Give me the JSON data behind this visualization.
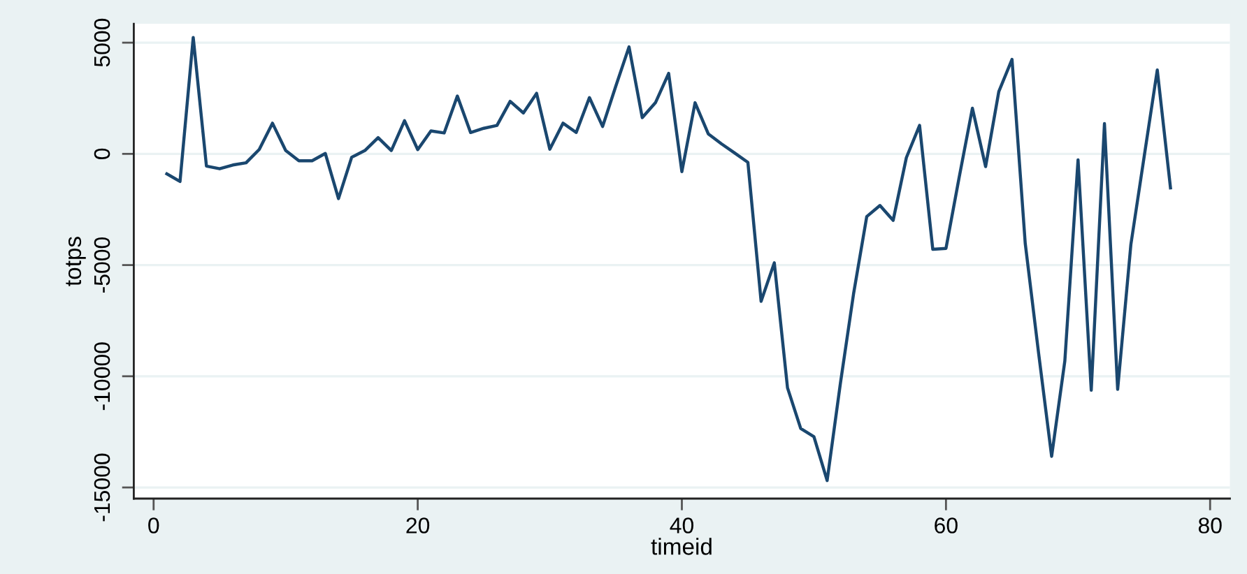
{
  "chart_data": {
    "type": "line",
    "xlabel": "timeid",
    "ylabel": "totps",
    "x": [
      1,
      2,
      3,
      4,
      5,
      6,
      7,
      8,
      9,
      10,
      11,
      12,
      13,
      14,
      15,
      16,
      17,
      18,
      19,
      20,
      21,
      22,
      23,
      24,
      25,
      26,
      27,
      28,
      29,
      30,
      31,
      32,
      33,
      34,
      35,
      36,
      37,
      38,
      39,
      40,
      41,
      42,
      43,
      44,
      45,
      46,
      47,
      48,
      49,
      50,
      51,
      52,
      53,
      54,
      55,
      56,
      57,
      58,
      59,
      60,
      61,
      62,
      63,
      64,
      65,
      66,
      67,
      68,
      69,
      70,
      71,
      72,
      73,
      74,
      75,
      76,
      77
    ],
    "series": [
      {
        "color": "#1a476f",
        "values": [
          -900,
          -1240,
          5230,
          -550,
          -670,
          -500,
          -400,
          200,
          1380,
          150,
          -310,
          -310,
          20,
          -2010,
          -150,
          150,
          730,
          150,
          1490,
          190,
          1030,
          940,
          2600,
          960,
          1150,
          1280,
          2360,
          1840,
          2720,
          210,
          1380,
          960,
          2530,
          1230,
          3050,
          4810,
          1630,
          2300,
          3620,
          -800,
          2300,
          900,
          450,
          40,
          -380,
          -6630,
          -4900,
          -10520,
          -12350,
          -12720,
          -14690,
          -10340,
          -6300,
          -2820,
          -2320,
          -2990,
          -170,
          1280,
          -4290,
          -4250,
          -1050,
          2050,
          -570,
          2800,
          4250,
          -4020,
          -8900,
          -13600,
          -9310,
          -270,
          -10630,
          1360,
          -10590,
          -4080,
          -150,
          3770,
          -1530
        ]
      }
    ],
    "xlim": [
      -1.5,
      81.5
    ],
    "ylim": [
      -15500,
      5850
    ],
    "xticks": [
      0,
      20,
      40,
      60,
      80
    ],
    "yticks": [
      -15000,
      -10000,
      -5000,
      0,
      5000
    ],
    "grid": "y",
    "line_style": "solid"
  }
}
